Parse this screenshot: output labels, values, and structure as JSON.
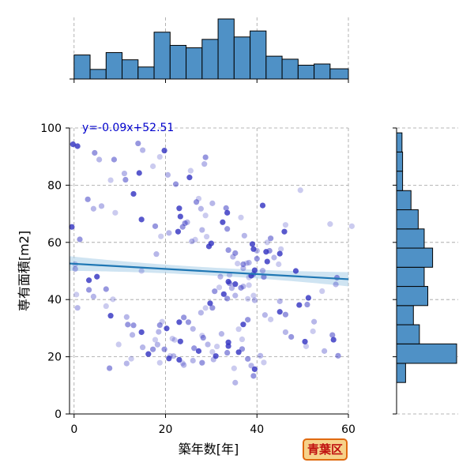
{
  "chart_data": {
    "type": "scatter",
    "title": "",
    "xlabel": "築年数[年]",
    "ylabel": "専有面積[m2]",
    "xlim": [
      -1,
      60
    ],
    "ylim": [
      0,
      100
    ],
    "xticks": [
      "0",
      "20",
      "40",
      "60"
    ],
    "yticks": [
      "0",
      "20",
      "40",
      "60",
      "80",
      "100"
    ],
    "grid": true,
    "regression": {
      "slope": -0.09,
      "intercept": 52.51,
      "label": "y=-0.09x+52.51"
    },
    "badge": "青葉区",
    "colors": {
      "points": "#3030c0",
      "fit_line": "#1f77b4",
      "ci_band": "#a8cde8",
      "hist": "#4f91c6"
    },
    "top_histogram": {
      "bin_edges": [
        0,
        3.5,
        7,
        10.5,
        14,
        17.5,
        21,
        24.5,
        28,
        31.5,
        35,
        38.5,
        42,
        45.5,
        49,
        52.5,
        56,
        60
      ],
      "relative_heights": [
        0.4,
        0.16,
        0.44,
        0.32,
        0.2,
        0.78,
        0.56,
        0.52,
        0.66,
        1.0,
        0.7,
        0.8,
        0.38,
        0.33,
        0.23,
        0.25,
        0.17
      ]
    },
    "right_histogram": {
      "bin_edges": [
        11,
        17.7,
        24.5,
        31.2,
        37.9,
        44.6,
        51.3,
        58,
        64.7,
        71.4,
        78.1,
        84.9,
        91.6,
        98.3
      ],
      "relative_widths": [
        0.15,
        1.0,
        0.38,
        0.28,
        0.52,
        0.46,
        0.6,
        0.46,
        0.36,
        0.24,
        0.1,
        0.1,
        0.09
      ]
    },
    "points_x": [
      20,
      22,
      19,
      24,
      21,
      25,
      27,
      23,
      29,
      31,
      33,
      35,
      37,
      38,
      39,
      36,
      34,
      30,
      28,
      26,
      22,
      18,
      20,
      21,
      23,
      25,
      28,
      30,
      32,
      35,
      38,
      40,
      41,
      42,
      37,
      33,
      29,
      26,
      24,
      21,
      19,
      45,
      48,
      50,
      52,
      55,
      57,
      46,
      43,
      44,
      47,
      49,
      51,
      53,
      56,
      58,
      10,
      12,
      14,
      8,
      6,
      5,
      3,
      2,
      9,
      11,
      13,
      15,
      17,
      16,
      7,
      4,
      1,
      0,
      0,
      0,
      0,
      2,
      31,
      33,
      35,
      37,
      39,
      40,
      42,
      36,
      34,
      32,
      30,
      28,
      26,
      24,
      38,
      36,
      40,
      42,
      44,
      35,
      33,
      31,
      29,
      27,
      25,
      23,
      21,
      19,
      17,
      15,
      13,
      11,
      9,
      39,
      37,
      41,
      43,
      45,
      47,
      38,
      34,
      30,
      26,
      22,
      18,
      14,
      10,
      6,
      2,
      36,
      38,
      40,
      42,
      39,
      37,
      35,
      33,
      31,
      29,
      27,
      25,
      23,
      38,
      40,
      36,
      34,
      32,
      41,
      39,
      37,
      35,
      33,
      22,
      24,
      26,
      28,
      30,
      20,
      18,
      16,
      14,
      12,
      28,
      30,
      32,
      34,
      36,
      26,
      24,
      22,
      20,
      18,
      50,
      52,
      54,
      56,
      58,
      48,
      46,
      44,
      42,
      40,
      8,
      10,
      12,
      14,
      16,
      6,
      4,
      2,
      15,
      25,
      35,
      45,
      55,
      5,
      30,
      40,
      50,
      20,
      10,
      0,
      60,
      33,
      37,
      41,
      39,
      35
    ],
    "points_y": [
      20,
      22,
      24,
      20,
      21,
      19,
      23,
      25,
      21,
      18,
      20,
      22,
      24,
      19,
      21,
      23,
      17,
      25,
      27,
      22,
      26,
      28,
      30,
      18,
      16,
      15,
      20,
      22,
      25,
      12,
      14,
      16,
      18,
      20,
      22,
      24,
      26,
      28,
      30,
      32,
      34,
      30,
      28,
      26,
      24,
      22,
      20,
      35,
      32,
      38,
      33,
      36,
      31,
      34,
      29,
      27,
      25,
      28,
      31,
      34,
      37,
      40,
      42,
      45,
      38,
      36,
      33,
      30,
      27,
      24,
      44,
      48,
      52,
      50,
      60,
      64,
      40,
      35,
      45,
      48,
      50,
      52,
      55,
      58,
      60,
      62,
      64,
      66,
      68,
      70,
      72,
      74,
      42,
      46,
      50,
      54,
      58,
      44,
      40,
      38,
      36,
      34,
      32,
      30,
      28,
      26,
      24,
      22,
      20,
      18,
      16,
      48,
      52,
      56,
      60,
      62,
      64,
      55,
      58,
      60,
      62,
      64,
      66,
      68,
      70,
      72,
      74,
      44,
      46,
      48,
      50,
      52,
      54,
      56,
      58,
      60,
      62,
      64,
      66,
      68,
      40,
      38,
      42,
      44,
      46,
      36,
      34,
      32,
      30,
      28,
      80,
      82,
      84,
      86,
      88,
      90,
      92,
      94,
      96,
      78,
      76,
      74,
      72,
      70,
      68,
      66,
      64,
      62,
      60,
      58,
      40,
      42,
      44,
      46,
      48,
      50,
      52,
      54,
      56,
      58,
      80,
      82,
      84,
      86,
      88,
      90,
      92,
      94,
      50,
      60,
      45,
      55,
      65,
      70,
      35,
      75,
      80,
      85,
      90,
      95,
      66,
      48,
      52,
      56,
      44,
      40
    ]
  }
}
